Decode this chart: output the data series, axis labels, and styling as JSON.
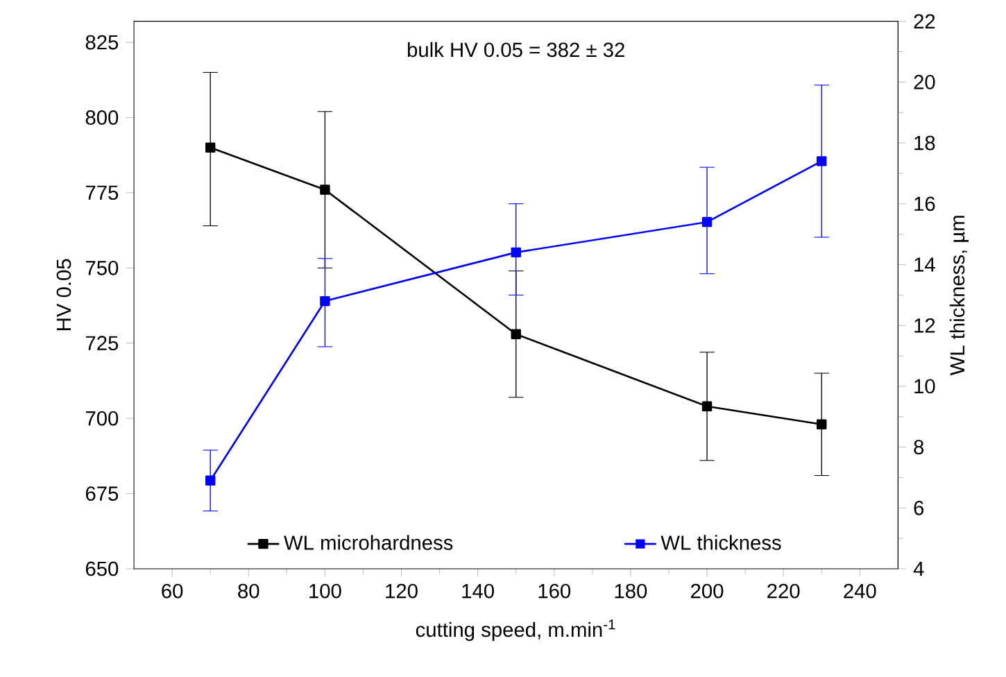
{
  "chart_data": {
    "type": "line",
    "xlabel": "cutting speed, m.min$^{-1}$",
    "ylabel": "HV 0.05",
    "y2label": "WL thickness, µm",
    "annotations": [
      "bulk HV 0.05 = 382 ± 32"
    ],
    "x": [
      70,
      100,
      150,
      200,
      230
    ],
    "series": [
      {
        "name": "WL microhardness",
        "color": "#000000",
        "values": [
          790,
          776,
          728,
          704,
          698
        ],
        "errors": [
          [
            764,
            815
          ],
          [
            750,
            802
          ],
          [
            707,
            749
          ],
          [
            686,
            722
          ],
          [
            681,
            715
          ]
        ]
      },
      {
        "name": "WL thickness",
        "color": "#0000ff",
        "axis": "y2",
        "values": [
          6.9,
          12.8,
          14.4,
          15.4,
          17.4
        ],
        "errors": [
          [
            5.9,
            7.9
          ],
          [
            11.3,
            14.2
          ],
          [
            13,
            16
          ],
          [
            13.7,
            17.2
          ],
          [
            14.9,
            19.9
          ]
        ]
      }
    ],
    "xlim": [
      50,
      250
    ],
    "xticks": [
      60,
      80,
      100,
      120,
      140,
      160,
      180,
      200,
      220,
      240
    ],
    "ylim": [
      650,
      832
    ],
    "yticks": [
      650,
      675,
      700,
      725,
      750,
      775,
      800,
      825
    ],
    "y2lim": [
      4,
      22
    ],
    "y2ticks": [
      4,
      6,
      8,
      10,
      12,
      14,
      16,
      18,
      20,
      22
    ],
    "marker": "square",
    "line_style": "solid",
    "legend": "bottom"
  }
}
